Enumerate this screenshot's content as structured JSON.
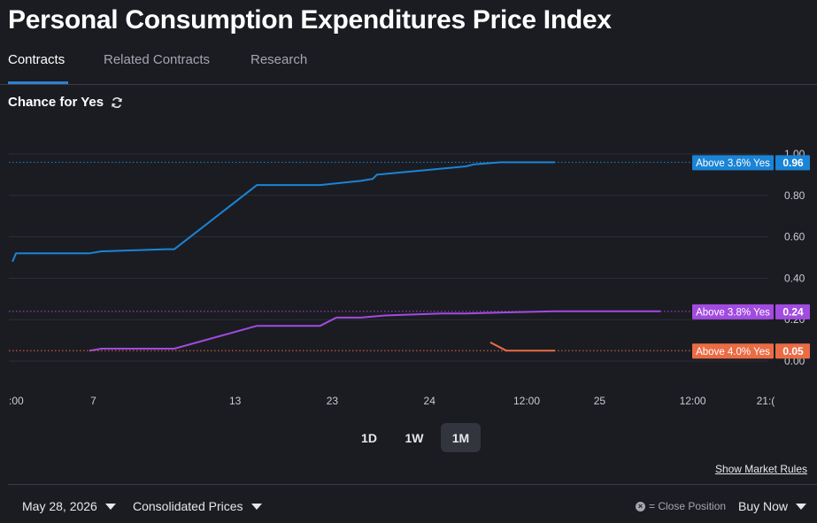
{
  "page": {
    "title": "Personal Consumption Expenditures Price Index"
  },
  "tabs": [
    {
      "label": "Contracts",
      "active": true
    },
    {
      "label": "Related Contracts",
      "active": false
    },
    {
      "label": "Research",
      "active": false
    }
  ],
  "chance_label": "Chance for Yes",
  "chart_data": {
    "type": "line",
    "title": "",
    "xlabel": "",
    "ylabel": "",
    "ylim": [
      0,
      1
    ],
    "y_ticks": [
      "1.00",
      "0.80",
      "0.60",
      "0.40",
      "0.20",
      "0.00"
    ],
    "x_ticks": [
      ":00",
      "7",
      "13",
      "23",
      "24",
      "12:00",
      "25",
      "12:00",
      "21:("
    ],
    "grid": true,
    "series": [
      {
        "name": "Above 3.6% Yes",
        "color": "#1a84d6",
        "last_label": "0.96",
        "x": [
          0,
          0.045,
          0.95,
          1.1,
          1.9,
          2.0,
          3.02,
          3.1,
          3.8,
          4.3,
          4.45,
          4.5,
          5.6,
          5.7,
          6.03,
          6.1,
          6.7
        ],
        "values": [
          0.48,
          0.52,
          0.52,
          0.53,
          0.54,
          0.54,
          0.85,
          0.85,
          0.85,
          0.87,
          0.88,
          0.9,
          0.94,
          0.95,
          0.96,
          0.96,
          0.96
        ]
      },
      {
        "name": "Above 3.8% Yes",
        "color": "#a24be0",
        "last_label": "0.24",
        "x": [
          0.95,
          1.1,
          1.9,
          2.0,
          3.02,
          3.1,
          3.8,
          4.0,
          4.3,
          4.6,
          5.3,
          5.6,
          6.1,
          6.7,
          7.2,
          8.0
        ],
        "values": [
          0.05,
          0.06,
          0.06,
          0.06,
          0.17,
          0.17,
          0.17,
          0.21,
          0.21,
          0.22,
          0.23,
          0.23,
          0.235,
          0.24,
          0.24,
          0.24
        ]
      },
      {
        "name": "Above 4.0% Yes",
        "color": "#ea6c45",
        "last_label": "0.05",
        "x": [
          5.9,
          6.1,
          6.7
        ],
        "values": [
          0.09,
          0.05,
          0.05
        ]
      }
    ]
  },
  "ranges": [
    {
      "label": "1D",
      "active": false
    },
    {
      "label": "1W",
      "active": false
    },
    {
      "label": "1M",
      "active": true
    }
  ],
  "rules_link": "Show Market Rules",
  "footer": {
    "date": "May 28, 2026",
    "prices": "Consolidated Prices",
    "close_legend": "= Close Position",
    "buy": "Buy Now"
  }
}
